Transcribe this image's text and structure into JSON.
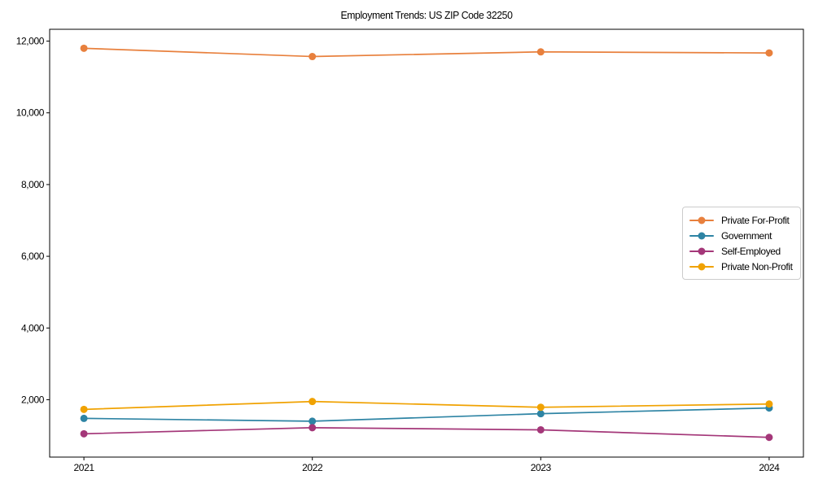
{
  "figure": {
    "background": "#ffffff",
    "frame_color": "#000000"
  },
  "chart_data": {
    "type": "line",
    "title": "Employment Trends: US ZIP Code 32250",
    "xlabel": "",
    "ylabel": "",
    "x": [
      2021,
      2022,
      2023,
      2024
    ],
    "x_tick_labels": [
      "2021",
      "2022",
      "2023",
      "2024"
    ],
    "y_ticks": [
      2000,
      4000,
      6000,
      8000,
      10000,
      12000
    ],
    "y_tick_labels": [
      "2,000",
      "4,000",
      "6,000",
      "8,000",
      "10,000",
      "12,000"
    ],
    "xlim": [
      2020.85,
      2024.15
    ],
    "ylim": [
      400,
      12330
    ],
    "grid": false,
    "legend_position": "center-right",
    "marker": "circle",
    "series": [
      {
        "name": "Private For-Profit",
        "color": "#E8803D",
        "values": [
          11800,
          11570,
          11700,
          11670
        ]
      },
      {
        "name": "Government",
        "color": "#2E84A4",
        "values": [
          1480,
          1400,
          1610,
          1770
        ]
      },
      {
        "name": "Self-Employed",
        "color": "#A43779",
        "values": [
          1050,
          1220,
          1160,
          950
        ]
      },
      {
        "name": "Private Non-Profit",
        "color": "#F0A202",
        "values": [
          1730,
          1950,
          1790,
          1880
        ]
      }
    ]
  }
}
